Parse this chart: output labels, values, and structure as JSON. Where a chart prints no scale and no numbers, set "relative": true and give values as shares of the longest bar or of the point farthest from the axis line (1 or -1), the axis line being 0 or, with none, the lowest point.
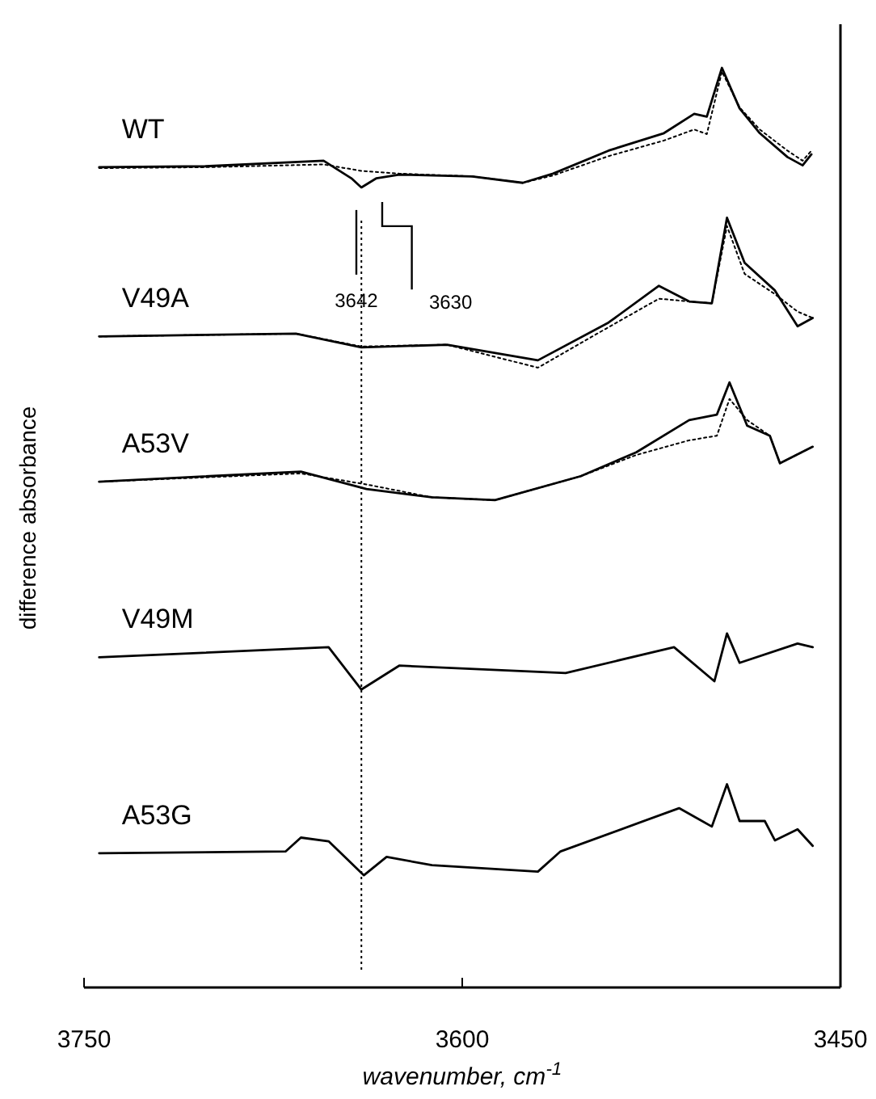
{
  "chart_data": {
    "type": "line",
    "relative": true,
    "xlabel": "wavenumber, cm$^{-1}$",
    "ylabel": "difference absorbance",
    "xlim": [
      3750,
      3450
    ],
    "xticks": [
      3750,
      3600,
      3450
    ],
    "grid": false,
    "legend": false,
    "series": [
      {
        "name": "WT",
        "color": "#000000",
        "line_style": "solid",
        "x": [
          3744,
          3702,
          3655,
          3644,
          3640,
          3634,
          3625,
          3596,
          3576,
          3564,
          3542,
          3520,
          3508,
          3503,
          3497,
          3490,
          3482,
          3471,
          3465,
          3461.5
        ],
        "values": [
          0.892,
          0.893,
          0.899,
          0.88,
          0.87,
          0.88,
          0.884,
          0.882,
          0.875,
          0.885,
          0.91,
          0.929,
          0.95,
          0.947,
          1.0,
          0.956,
          0.929,
          0.903,
          0.894,
          0.906
        ]
      },
      {
        "color": "#000000",
        "line_style": "dotted",
        "x": [
          3744,
          3702,
          3655,
          3640,
          3625,
          3596,
          3576,
          3564,
          3542,
          3520,
          3508,
          3503,
          3497,
          3490,
          3482,
          3471,
          3465,
          3461.5
        ],
        "values": [
          0.891,
          0.892,
          0.895,
          0.888,
          0.885,
          0.882,
          0.875,
          0.883,
          0.904,
          0.921,
          0.933,
          0.928,
          0.996,
          0.957,
          0.933,
          0.91,
          0.899,
          0.91
        ]
      },
      {
        "name": "V49A",
        "color": "#000000",
        "line_style": "solid",
        "x": [
          3744,
          3666,
          3640,
          3606,
          3570,
          3542,
          3522,
          3510,
          3501,
          3495,
          3488,
          3476,
          3467,
          3461
        ],
        "values": [
          0.708,
          0.711,
          0.696,
          0.699,
          0.682,
          0.723,
          0.763,
          0.746,
          0.744,
          0.837,
          0.788,
          0.758,
          0.719,
          0.728
        ]
      },
      {
        "color": "#000000",
        "line_style": "dotted",
        "x": [
          3744,
          3666,
          3640,
          3606,
          3570,
          3542,
          3522,
          3510,
          3501,
          3495,
          3488,
          3476,
          3467,
          3461
        ],
        "values": [
          0.708,
          0.711,
          0.697,
          0.699,
          0.674,
          0.718,
          0.749,
          0.746,
          0.744,
          0.828,
          0.776,
          0.754,
          0.735,
          0.728
        ]
      },
      {
        "name": "A53V",
        "color": "#000000",
        "line_style": "solid",
        "x": [
          3744,
          3664,
          3638,
          3612,
          3587,
          3553,
          3531,
          3510,
          3499,
          3494,
          3487,
          3478,
          3474,
          3461
        ],
        "values": [
          0.55,
          0.561,
          0.542,
          0.533,
          0.53,
          0.556,
          0.582,
          0.617,
          0.623,
          0.658,
          0.611,
          0.6,
          0.57,
          0.588
        ]
      },
      {
        "color": "#000000",
        "line_style": "dotted",
        "x": [
          3744,
          3664,
          3638,
          3612,
          3587,
          3553,
          3531,
          3510,
          3499,
          3494,
          3487,
          3478,
          3474,
          3461
        ],
        "values": [
          0.55,
          0.559,
          0.547,
          0.533,
          0.53,
          0.556,
          0.579,
          0.595,
          0.6,
          0.64,
          0.617,
          0.6,
          0.57,
          0.588
        ]
      },
      {
        "name": "V49M",
        "color": "#000000",
        "line_style": "solid",
        "x": [
          3744,
          3653,
          3640,
          3625,
          3559,
          3516,
          3500,
          3495,
          3490,
          3467,
          3461
        ],
        "values": [
          0.359,
          0.37,
          0.324,
          0.35,
          0.342,
          0.37,
          0.333,
          0.385,
          0.353,
          0.374,
          0.37
        ]
      },
      {
        "name": "A53G",
        "color": "#000000",
        "line_style": "solid",
        "x": [
          3744,
          3670,
          3664,
          3653,
          3639,
          3630,
          3612,
          3570,
          3561,
          3514,
          3501,
          3495,
          3490,
          3480,
          3476,
          3467,
          3461
        ],
        "values": [
          0.146,
          0.148,
          0.163,
          0.159,
          0.122,
          0.142,
          0.133,
          0.126,
          0.148,
          0.195,
          0.175,
          0.221,
          0.181,
          0.181,
          0.16,
          0.172,
          0.154
        ]
      }
    ],
    "ref_lines": [
      {
        "axis": "x",
        "value": 3640,
        "line_style": "dotted"
      }
    ],
    "annotations": [
      "3642",
      "3630"
    ]
  }
}
